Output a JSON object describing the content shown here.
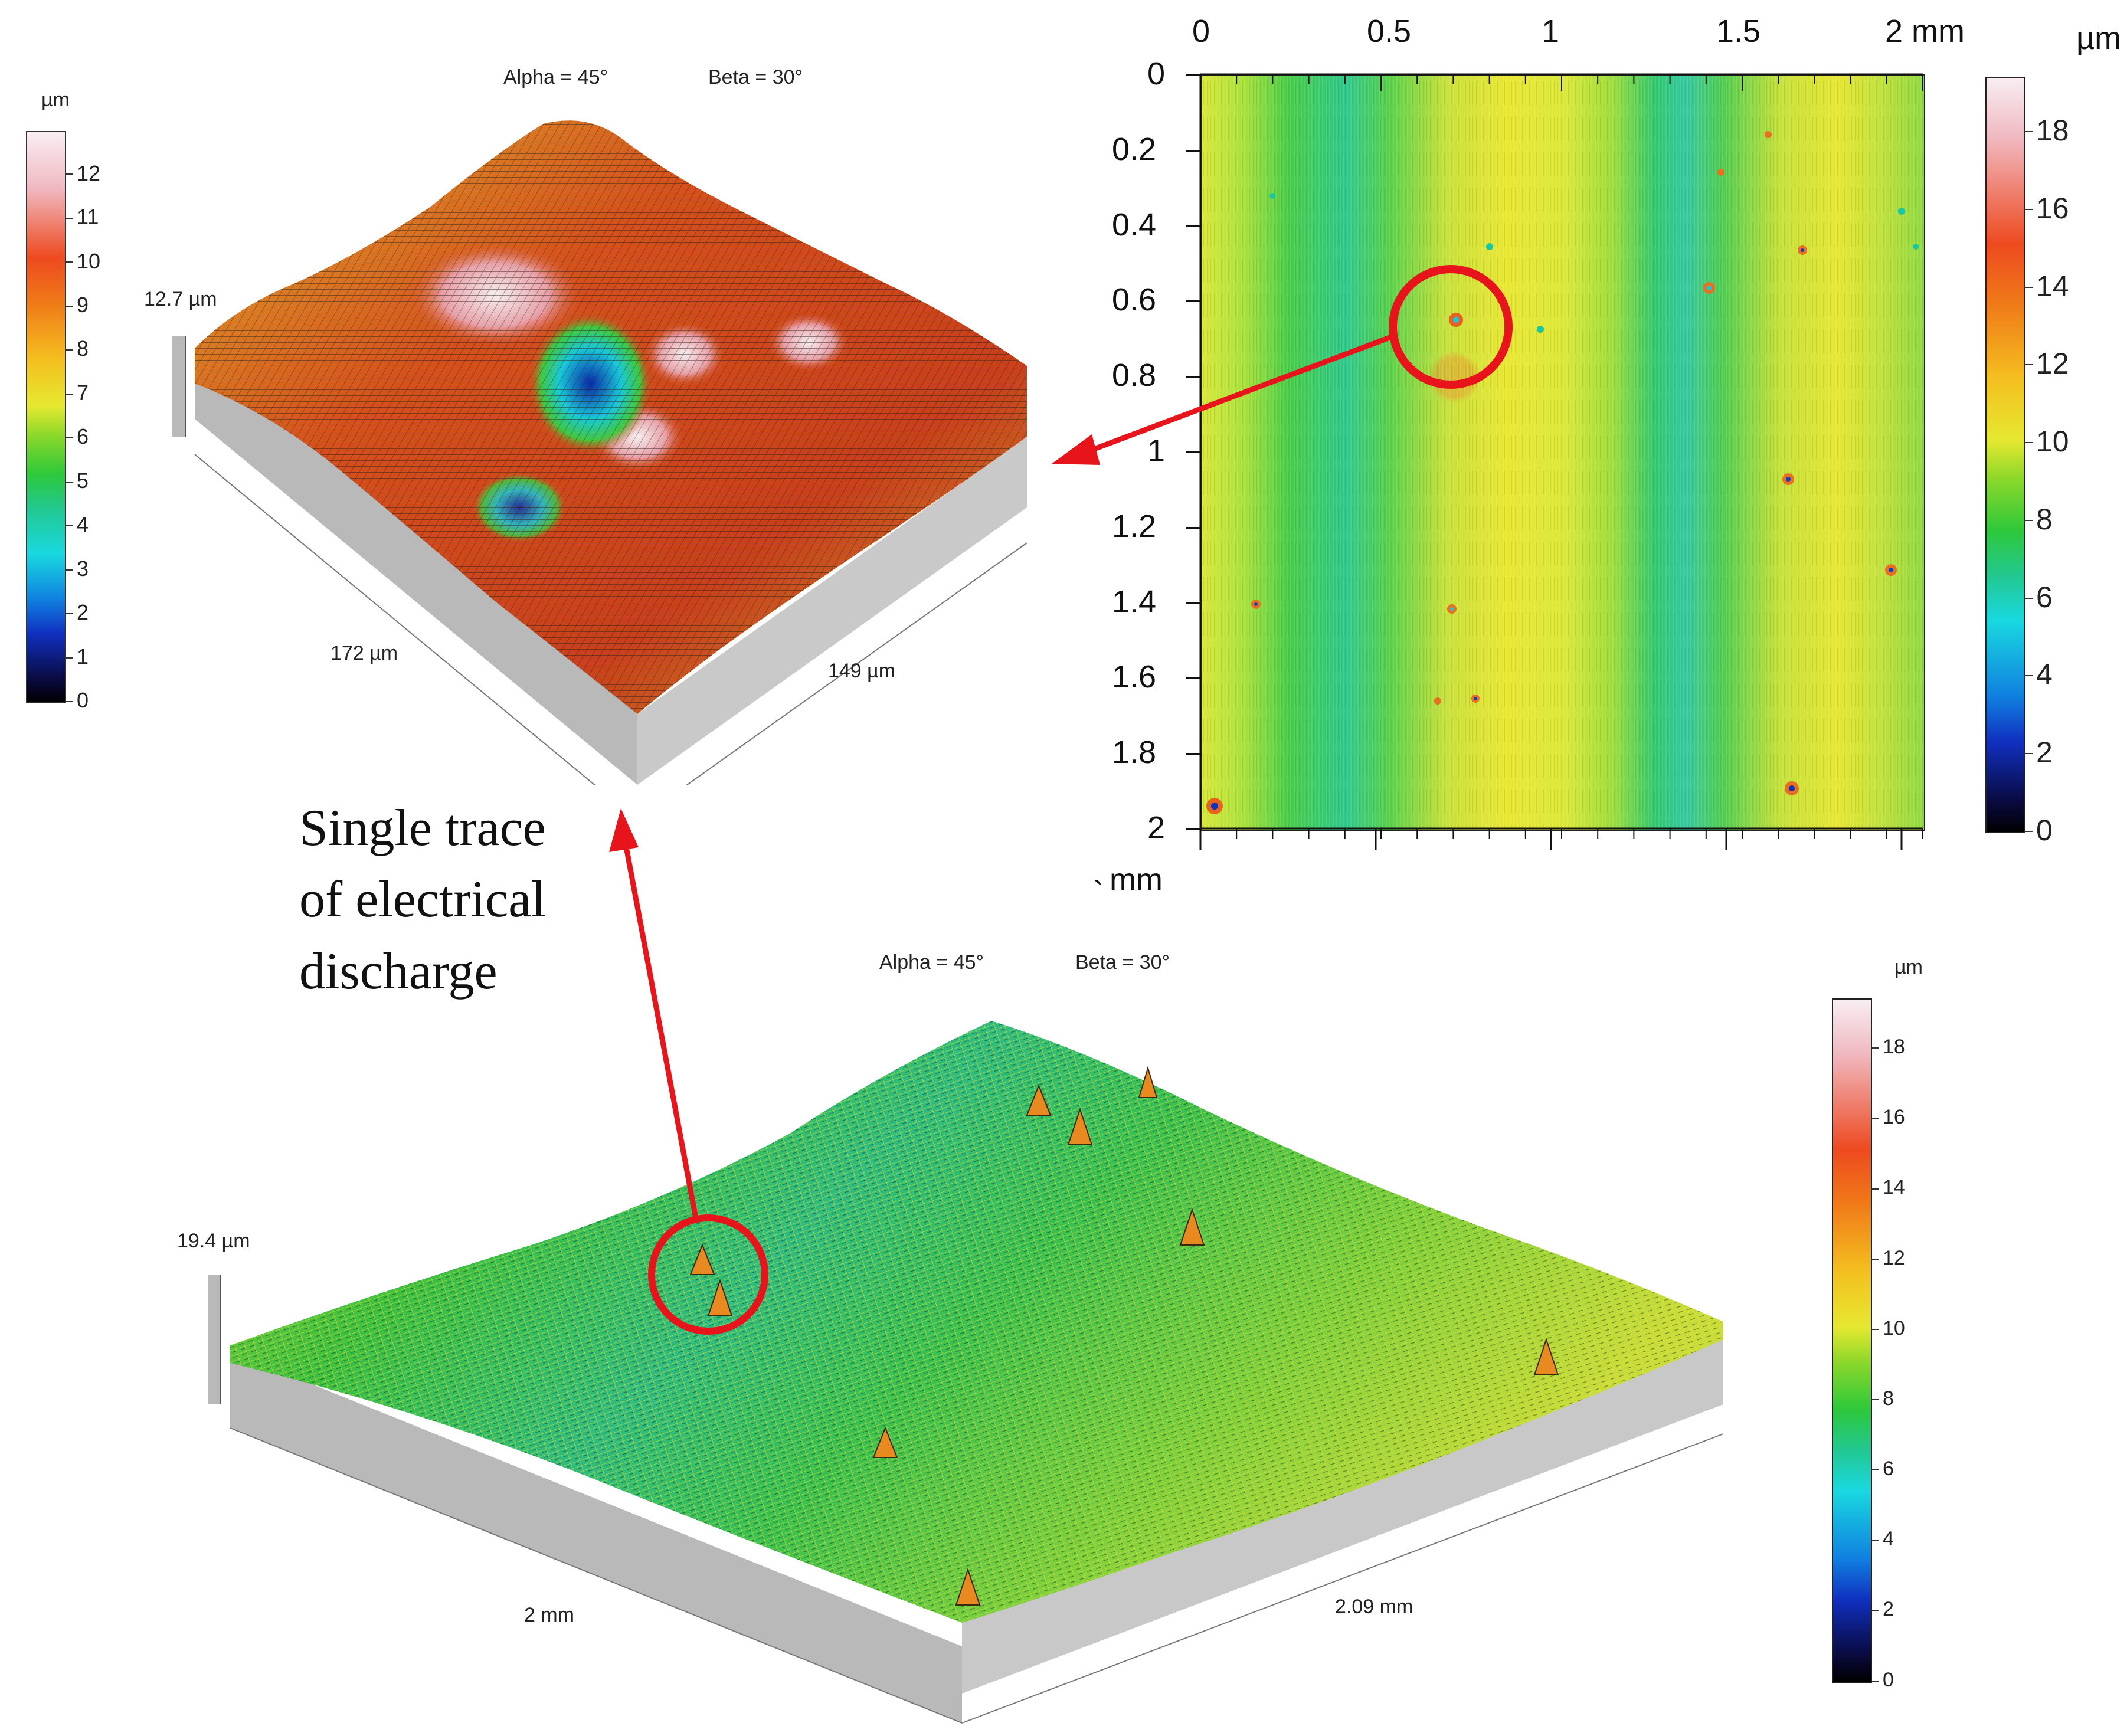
{
  "top_left_3d": {
    "angles": {
      "alpha": "Alpha = 45°",
      "beta": "Beta = 30°"
    },
    "height_label": "12.7 µm",
    "x_label": "172 µm",
    "y_label": "149 µm",
    "colorbar": {
      "unit": "µm",
      "ticks": [
        "12",
        "11",
        "10",
        "9",
        "8",
        "7",
        "6",
        "5",
        "4",
        "3",
        "2",
        "1",
        "0"
      ],
      "range": [
        0,
        12.7
      ]
    }
  },
  "top_right_map": {
    "x_ticks": [
      "0",
      "0.5",
      "1",
      "1.5",
      "2 mm"
    ],
    "y_ticks": [
      "0",
      "0.2",
      "0.4",
      "0.6",
      "0.8",
      "1",
      "1.2",
      "1.4",
      "1.6",
      "1.8",
      "2"
    ],
    "y_unit": "mm",
    "stray_mark": "`",
    "colorbar": {
      "unit": "µm",
      "ticks": [
        "18",
        "16",
        "14",
        "12",
        "10",
        "8",
        "6",
        "4",
        "2",
        "0"
      ],
      "range": [
        0,
        19.4
      ]
    }
  },
  "bottom_3d": {
    "angles": {
      "alpha": "Alpha = 45°",
      "beta": "Beta = 30°"
    },
    "height_label": "19.4 µm",
    "x_label": "2 mm",
    "y_label": "2.09 mm",
    "colorbar": {
      "unit": "µm",
      "ticks": [
        "18",
        "16",
        "14",
        "12",
        "10",
        "8",
        "6",
        "4",
        "2",
        "0"
      ],
      "range": [
        0,
        19.4
      ]
    }
  },
  "caption": {
    "line1": "Single trace",
    "line2": "of electrical",
    "line3": "discharge"
  },
  "colors": {
    "highlight": "#e8141b",
    "side": "#b9b9b9",
    "green": "#3cc43c",
    "yellow": "#e6e830"
  }
}
